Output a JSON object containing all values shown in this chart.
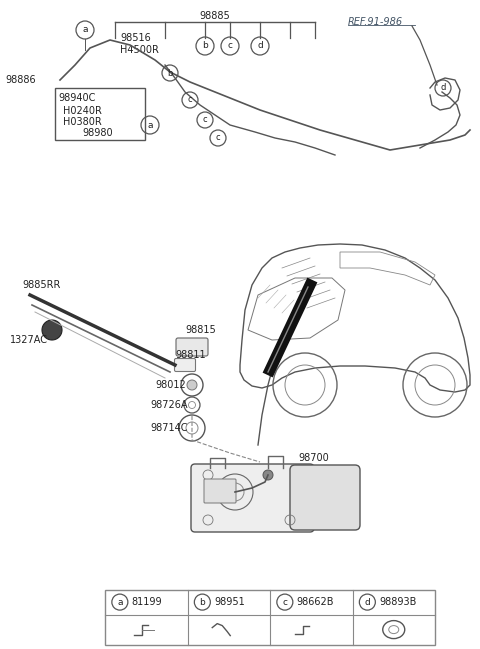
{
  "bg_color": "#ffffff",
  "lc": "#555555",
  "tc": "#222222",
  "fig_w": 4.8,
  "fig_h": 6.49,
  "dpi": 100,
  "xlim": [
    0,
    480
  ],
  "ylim": [
    0,
    649
  ]
}
